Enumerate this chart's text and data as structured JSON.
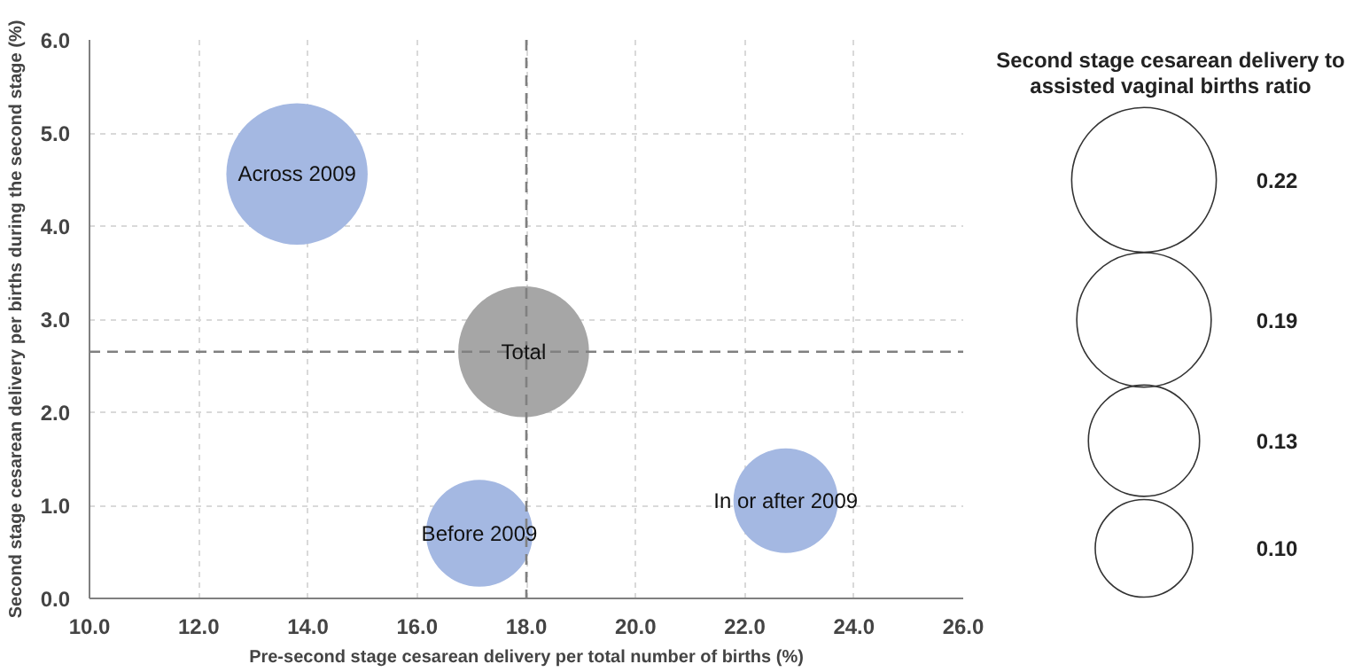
{
  "chart_data": {
    "type": "bubble",
    "xlabel": "Pre-second stage cesarean delivery per total number of births (%)",
    "ylabel": "Second stage cesarean delivery per births during the second stage (%)",
    "legend_title": "Second stage cesarean delivery to assisted vaginal births ratio",
    "size_legend": [
      {
        "value": 0.22,
        "label": "0.22"
      },
      {
        "value": 0.19,
        "label": "0.19"
      },
      {
        "value": 0.13,
        "label": "0.13"
      },
      {
        "value": 0.1,
        "label": "0.10"
      }
    ],
    "xlim": [
      10,
      26
    ],
    "ylim": [
      0,
      6
    ],
    "xticks": [
      {
        "value": 10,
        "label": "10.0"
      },
      {
        "value": 12,
        "label": "12.0"
      },
      {
        "value": 14,
        "label": "14.0"
      },
      {
        "value": 16,
        "label": "16.0"
      },
      {
        "value": 18,
        "label": "18.0"
      },
      {
        "value": 20,
        "label": "20.0"
      },
      {
        "value": 22,
        "label": "22.0"
      },
      {
        "value": 24,
        "label": "24.0"
      },
      {
        "value": 26,
        "label": "26.0"
      }
    ],
    "yticks": [
      {
        "value": 0,
        "label": "0.0"
      },
      {
        "value": 1,
        "label": "1.0"
      },
      {
        "value": 2,
        "label": "2.0"
      },
      {
        "value": 3,
        "label": "3.0"
      },
      {
        "value": 4,
        "label": "4.0"
      },
      {
        "value": 5,
        "label": "5.0"
      },
      {
        "value": 6,
        "label": "6.0"
      }
    ],
    "grid": true,
    "ref_lines": [
      {
        "axis": "x",
        "value": 18,
        "color": "#808080",
        "line_style": "dashed"
      },
      {
        "axis": "y",
        "value": 2.65,
        "color": "#808080",
        "line_style": "dashed"
      }
    ],
    "series": [
      {
        "name": "Across 2009",
        "color": "#a4b8e2",
        "x": [
          13.8
        ],
        "values": [
          4.56
        ],
        "sizes": [
          0.21
        ]
      },
      {
        "name": "Total",
        "color": "#a6a6a6",
        "x": [
          17.95
        ],
        "values": [
          2.65
        ],
        "sizes": [
          0.18
        ]
      },
      {
        "name": "Before 2009",
        "color": "#a4b8e2",
        "x": [
          17.14
        ],
        "values": [
          0.7
        ],
        "sizes": [
          0.12
        ]
      },
      {
        "name": "In or after 2009",
        "color": "#a4b8e2",
        "x": [
          22.75
        ],
        "values": [
          1.05
        ],
        "sizes": [
          0.115
        ]
      }
    ]
  }
}
